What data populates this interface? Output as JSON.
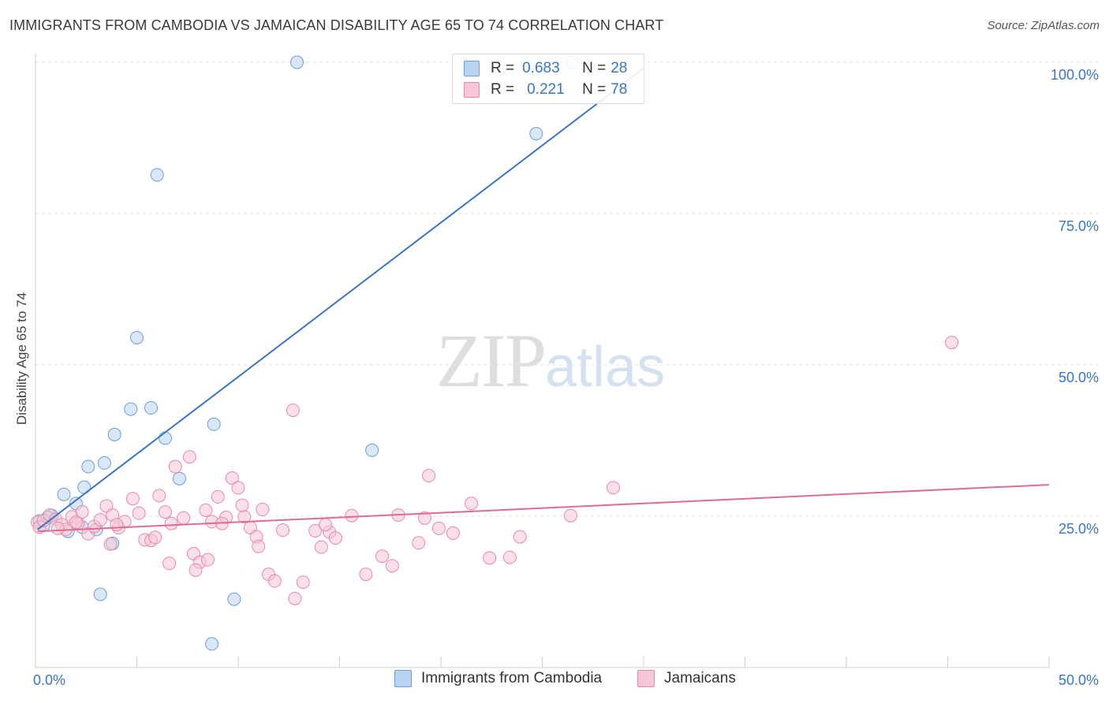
{
  "header": {
    "title": "IMMIGRANTS FROM CAMBODIA VS JAMAICAN DISABILITY AGE 65 TO 74 CORRELATION CHART",
    "source": "Source: ZipAtlas.com"
  },
  "watermark": {
    "zip": "ZIP",
    "atlas": "atlas"
  },
  "legend_top": {
    "r_key": "R =",
    "n_key": "N =",
    "rows": [
      {
        "r": "0.683",
        "n": "28",
        "color": "#b9d3f3",
        "border": "#6a9fd8"
      },
      {
        "r": "0.221",
        "n": "78",
        "color": "#f8c6d5",
        "border": "#e58aa7"
      }
    ]
  },
  "chart_data": {
    "type": "scatter",
    "title": "IMMIGRANTS FROM CAMBODIA VS JAMAICAN DISABILITY AGE 65 TO 74 CORRELATION CHART",
    "xlabel": "",
    "ylabel": "Disability Age 65 to 74",
    "xlim": [
      0,
      50
    ],
    "ylim": [
      0,
      100
    ],
    "x_tick_labels": [
      "0.0%",
      "50.0%"
    ],
    "y_tick_values": [
      25,
      50,
      75,
      100
    ],
    "y_tick_labels": [
      "25.0%",
      "50.0%",
      "75.0%",
      "100.0%"
    ],
    "grid": true,
    "legend_position": "bottom",
    "series": [
      {
        "name": "Immigrants from Cambodia",
        "color": "#6a9fd8",
        "fill": "#b9d3f3",
        "line_color": "#3a75c4",
        "trendline": {
          "x": [
            0.1,
            30.0
          ],
          "y": [
            22.8,
            99.0
          ]
        },
        "points": [
          [
            0.2,
            24.2
          ],
          [
            0.4,
            23.5
          ],
          [
            0.8,
            25.1
          ],
          [
            1.4,
            28.6
          ],
          [
            1.6,
            22.5
          ],
          [
            2.0,
            27.1
          ],
          [
            2.3,
            23.2
          ],
          [
            2.4,
            29.8
          ],
          [
            2.6,
            33.2
          ],
          [
            3.0,
            22.8
          ],
          [
            3.4,
            33.8
          ],
          [
            3.8,
            20.5
          ],
          [
            3.9,
            38.5
          ],
          [
            4.7,
            42.7
          ],
          [
            5.0,
            54.5
          ],
          [
            5.7,
            42.9
          ],
          [
            6.0,
            81.4
          ],
          [
            6.4,
            37.9
          ],
          [
            7.1,
            31.2
          ],
          [
            8.8,
            40.2
          ],
          [
            9.8,
            11.3
          ],
          [
            12.9,
            100.0
          ],
          [
            16.6,
            35.9
          ],
          [
            24.7,
            88.2
          ],
          [
            26.5,
            100.0
          ],
          [
            3.2,
            12.1
          ],
          [
            8.7,
            3.9
          ],
          [
            0.6,
            24.8
          ]
        ]
      },
      {
        "name": "Jamaicans",
        "color": "#e58aa7",
        "fill": "#f8c6d5",
        "line_color": "#e06b93",
        "trendline": {
          "x": [
            0.1,
            50.0
          ],
          "y": [
            22.5,
            30.2
          ]
        },
        "points": [
          [
            0.1,
            24.0
          ],
          [
            0.2,
            23.2
          ],
          [
            0.4,
            24.3
          ],
          [
            0.7,
            25.2
          ],
          [
            1.0,
            24.5
          ],
          [
            1.3,
            23.6
          ],
          [
            1.5,
            22.8
          ],
          [
            1.8,
            24.9
          ],
          [
            2.1,
            23.8
          ],
          [
            2.3,
            25.7
          ],
          [
            2.6,
            22.1
          ],
          [
            2.9,
            23.3
          ],
          [
            3.2,
            24.4
          ],
          [
            3.5,
            26.7
          ],
          [
            3.8,
            25.2
          ],
          [
            4.1,
            23.1
          ],
          [
            4.4,
            24.1
          ],
          [
            4.8,
            27.9
          ],
          [
            5.1,
            25.5
          ],
          [
            5.4,
            21.1
          ],
          [
            5.7,
            21.0
          ],
          [
            6.1,
            28.4
          ],
          [
            6.4,
            25.7
          ],
          [
            6.7,
            23.8
          ],
          [
            6.9,
            33.2
          ],
          [
            7.3,
            24.7
          ],
          [
            7.6,
            34.8
          ],
          [
            7.8,
            18.8
          ],
          [
            8.1,
            17.4
          ],
          [
            8.4,
            26.0
          ],
          [
            8.7,
            24.1
          ],
          [
            9.0,
            28.2
          ],
          [
            9.4,
            24.8
          ],
          [
            9.7,
            31.3
          ],
          [
            10.0,
            29.7
          ],
          [
            10.3,
            24.9
          ],
          [
            10.6,
            23.1
          ],
          [
            10.9,
            21.6
          ],
          [
            11.2,
            26.1
          ],
          [
            11.5,
            15.4
          ],
          [
            11.8,
            14.3
          ],
          [
            12.2,
            22.7
          ],
          [
            12.8,
            11.4
          ],
          [
            13.2,
            14.1
          ],
          [
            14.1,
            19.9
          ],
          [
            14.5,
            22.4
          ],
          [
            14.8,
            21.4
          ],
          [
            15.6,
            25.1
          ],
          [
            16.3,
            15.4
          ],
          [
            17.1,
            18.4
          ],
          [
            17.6,
            16.8
          ],
          [
            17.9,
            25.2
          ],
          [
            18.9,
            20.6
          ],
          [
            19.4,
            31.7
          ],
          [
            19.9,
            23.0
          ],
          [
            20.6,
            22.2
          ],
          [
            21.5,
            27.1
          ],
          [
            22.4,
            18.1
          ],
          [
            23.4,
            18.2
          ],
          [
            23.9,
            21.6
          ],
          [
            26.4,
            25.1
          ],
          [
            28.5,
            29.7
          ],
          [
            45.2,
            53.7
          ],
          [
            12.7,
            42.5
          ],
          [
            4.0,
            23.6
          ],
          [
            6.6,
            17.2
          ],
          [
            8.5,
            17.8
          ],
          [
            9.2,
            23.8
          ],
          [
            10.2,
            26.8
          ],
          [
            11.0,
            20.0
          ],
          [
            13.8,
            22.6
          ],
          [
            19.2,
            24.7
          ],
          [
            1.1,
            23.0
          ],
          [
            2.0,
            24.0
          ],
          [
            5.9,
            21.5
          ],
          [
            7.9,
            16.1
          ],
          [
            14.3,
            23.6
          ],
          [
            3.7,
            20.4
          ]
        ]
      }
    ]
  },
  "legend_bottom": {
    "items": [
      {
        "label": "Immigrants from Cambodia",
        "color": "#b9d3f3",
        "border": "#6a9fd8"
      },
      {
        "label": "Jamaicans",
        "color": "#f8c6d5",
        "border": "#e58aa7"
      }
    ]
  }
}
